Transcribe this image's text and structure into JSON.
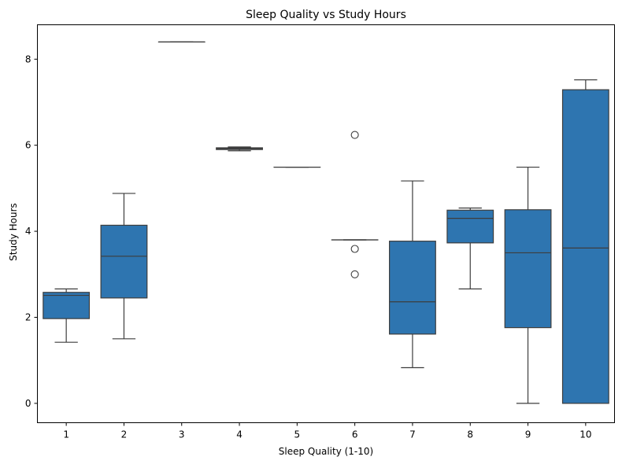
{
  "chart_data": {
    "type": "box",
    "title": "Sleep Quality vs Study Hours",
    "xlabel": "Sleep Quality (1-10)",
    "ylabel": "Study Hours",
    "categories": [
      "1",
      "2",
      "3",
      "4",
      "5",
      "6",
      "7",
      "8",
      "9",
      "10"
    ],
    "ylim": [
      -0.45,
      8.8
    ],
    "yticks": [
      0,
      2,
      4,
      6,
      8
    ],
    "grid": false,
    "legend": "none",
    "box_color": "#2e75b0",
    "line_color": "#3d3d3d",
    "boxes": [
      {
        "category": "1",
        "whisker_low": 1.42,
        "q1": 1.97,
        "median": 2.51,
        "q3": 2.58,
        "whisker_high": 2.66,
        "outliers": []
      },
      {
        "category": "2",
        "whisker_low": 1.5,
        "q1": 2.45,
        "median": 3.42,
        "q3": 4.14,
        "whisker_high": 4.88,
        "outliers": []
      },
      {
        "category": "3",
        "whisker_low": 8.4,
        "q1": 8.4,
        "median": 8.4,
        "q3": 8.4,
        "whisker_high": 8.4,
        "outliers": []
      },
      {
        "category": "4",
        "whisker_low": 5.87,
        "q1": 5.9,
        "median": 5.92,
        "q3": 5.94,
        "whisker_high": 5.96,
        "outliers": []
      },
      {
        "category": "5",
        "whisker_low": 5.49,
        "q1": 5.49,
        "median": 5.49,
        "q3": 5.49,
        "whisker_high": 5.49,
        "outliers": []
      },
      {
        "category": "6",
        "whisker_low": 3.8,
        "q1": 3.8,
        "median": 3.8,
        "q3": 3.8,
        "whisker_high": 3.8,
        "outliers": [
          6.24,
          3.59,
          3.0
        ]
      },
      {
        "category": "7",
        "whisker_low": 0.83,
        "q1": 1.61,
        "median": 2.36,
        "q3": 3.77,
        "whisker_high": 5.17,
        "outliers": []
      },
      {
        "category": "8",
        "whisker_low": 2.66,
        "q1": 3.73,
        "median": 4.3,
        "q3": 4.49,
        "whisker_high": 4.54,
        "outliers": []
      },
      {
        "category": "9",
        "whisker_low": 0.0,
        "q1": 1.76,
        "median": 3.5,
        "q3": 4.5,
        "whisker_high": 5.49,
        "outliers": []
      },
      {
        "category": "10",
        "whisker_low": 0.0,
        "q1": 0.0,
        "median": 3.61,
        "q3": 7.29,
        "whisker_high": 7.52,
        "outliers": []
      }
    ]
  }
}
